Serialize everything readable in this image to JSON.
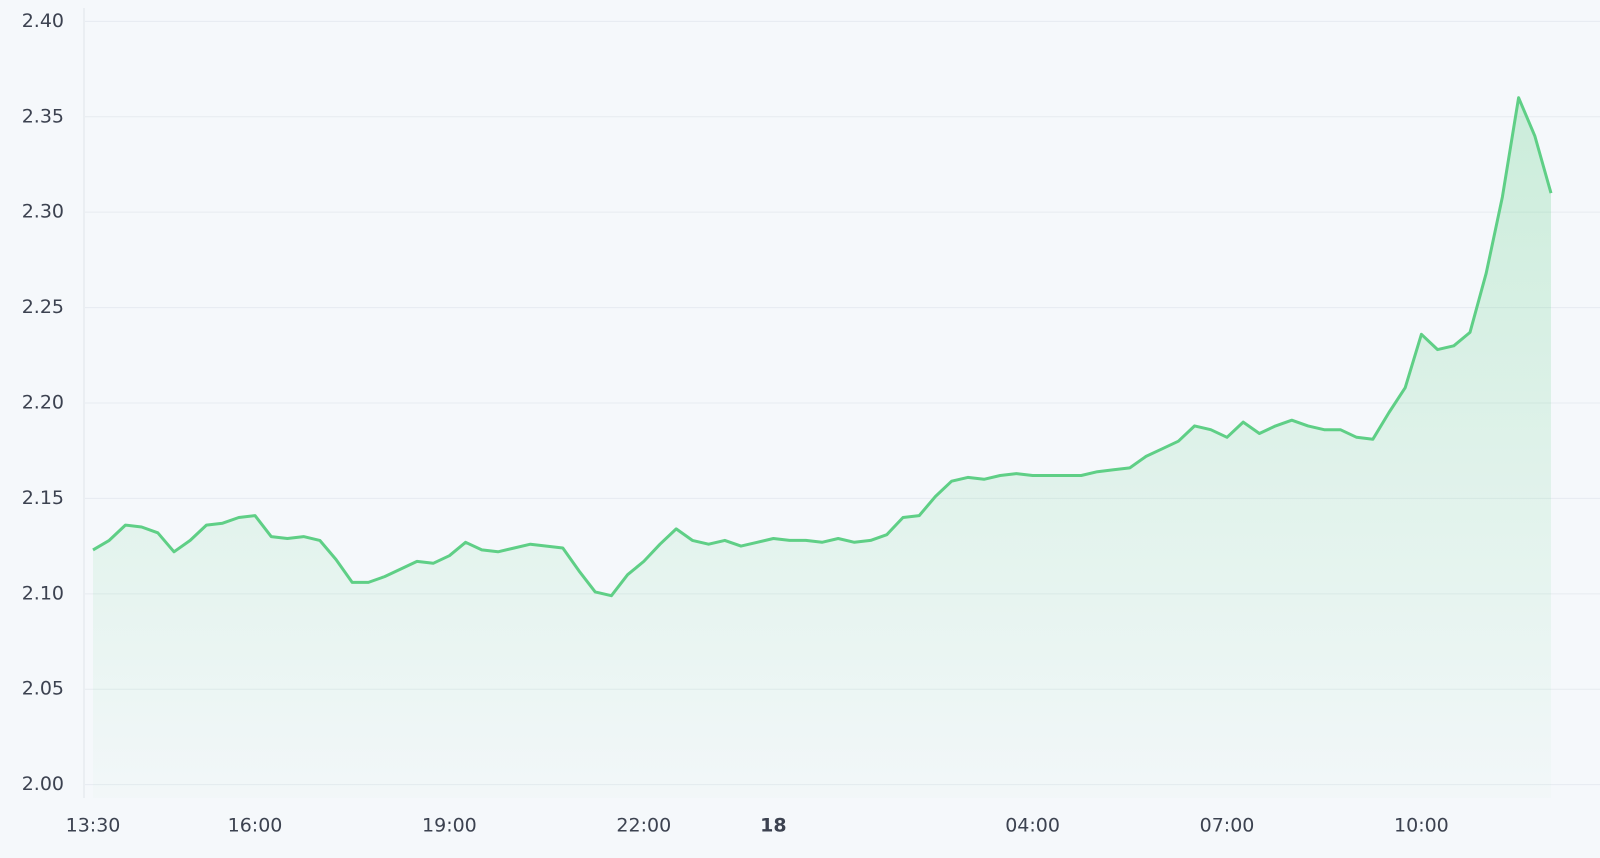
{
  "chart_data": {
    "type": "area",
    "categories": [
      "13:30",
      null,
      null,
      null,
      null,
      null,
      null,
      null,
      null,
      null,
      "16:00",
      null,
      null,
      null,
      null,
      null,
      null,
      null,
      null,
      null,
      null,
      null,
      "19:00",
      null,
      null,
      null,
      null,
      null,
      null,
      null,
      null,
      null,
      null,
      null,
      "22:00",
      null,
      null,
      null,
      null,
      null,
      null,
      null,
      "18",
      null,
      null,
      null,
      null,
      null,
      null,
      null,
      null,
      null,
      null,
      null,
      null,
      null,
      null,
      null,
      "04:00",
      null,
      null,
      null,
      null,
      null,
      null,
      null,
      null,
      null,
      null,
      null,
      "07:00",
      null,
      null,
      null,
      null,
      null,
      null,
      null,
      null,
      null,
      null,
      null,
      "10:00",
      null,
      null,
      null,
      null,
      null,
      null,
      null,
      null
    ],
    "series": [
      {
        "color": "#5fcf86",
        "values": [
          2.123,
          2.128,
          2.136,
          2.135,
          2.132,
          2.122,
          2.128,
          2.136,
          2.137,
          2.14,
          2.141,
          2.13,
          2.129,
          2.13,
          2.128,
          2.118,
          2.106,
          2.106,
          2.109,
          2.113,
          2.117,
          2.116,
          2.12,
          2.127,
          2.123,
          2.122,
          2.124,
          2.126,
          2.125,
          2.124,
          2.112,
          2.101,
          2.099,
          2.11,
          2.117,
          2.126,
          2.134,
          2.128,
          2.126,
          2.128,
          2.125,
          2.127,
          2.129,
          2.128,
          2.128,
          2.127,
          2.129,
          2.127,
          2.128,
          2.131,
          2.14,
          2.141,
          2.151,
          2.159,
          2.161,
          2.16,
          2.162,
          2.163,
          2.162,
          2.162,
          2.162,
          2.162,
          2.164,
          2.165,
          2.166,
          2.172,
          2.176,
          2.18,
          2.188,
          2.186,
          2.182,
          2.19,
          2.184,
          2.188,
          2.191,
          2.188,
          2.186,
          2.186,
          2.182,
          2.181,
          2.195,
          2.208,
          2.236,
          2.228,
          2.23,
          2.237,
          2.268,
          2.308,
          2.36,
          2.34,
          2.31
        ]
      }
    ],
    "ylim": [
      1.993,
      2.407
    ],
    "yticks": [
      {
        "value": 2.0,
        "label": "2.00"
      },
      {
        "value": 2.05,
        "label": "2.05"
      },
      {
        "value": 2.1,
        "label": "2.10"
      },
      {
        "value": 2.15,
        "label": "2.15"
      },
      {
        "value": 2.2,
        "label": "2.20"
      },
      {
        "value": 2.25,
        "label": "2.25"
      },
      {
        "value": 2.3,
        "label": "2.30"
      },
      {
        "value": 2.35,
        "label": "2.35"
      },
      {
        "value": 2.4,
        "label": "2.40"
      }
    ],
    "grid": true
  }
}
